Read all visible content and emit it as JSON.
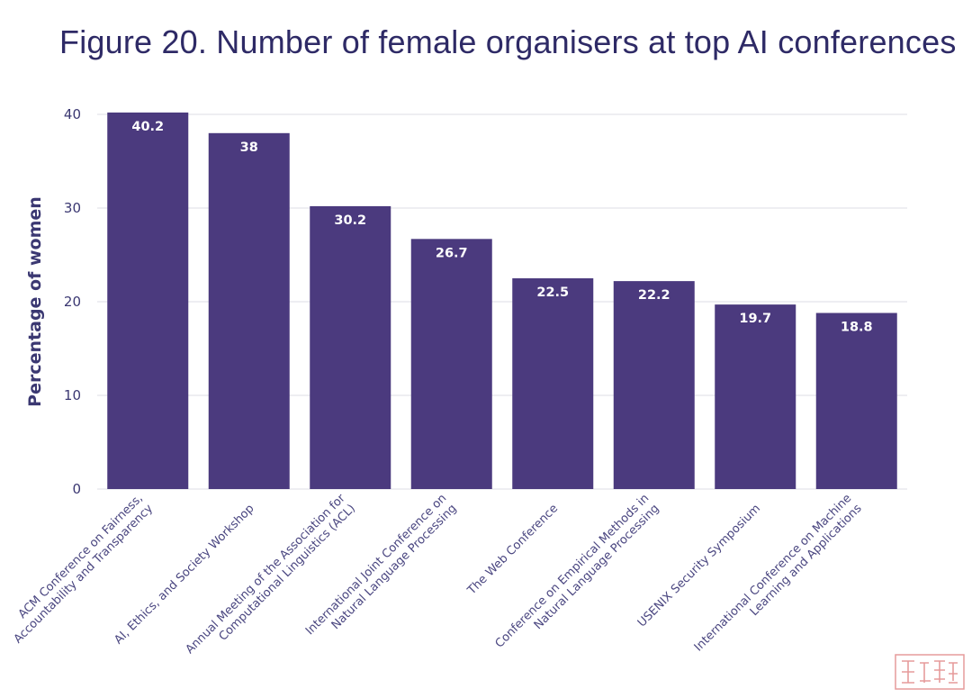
{
  "title": "Figure 20. Number of female organisers at top AI conferences",
  "colors": {
    "bar": "#4b3a7e",
    "text": "#3b3872",
    "title": "#2e2a66",
    "grid": "#e9e9ee"
  },
  "chart_data": {
    "type": "bar",
    "title": "Figure 20. Number of female organisers at top AI conferences",
    "xlabel": "",
    "ylabel": "Percentage of women",
    "ylim": [
      0,
      40
    ],
    "yticks": [
      0,
      10,
      20,
      30,
      40
    ],
    "grid": true,
    "categories": [
      [
        "ACM Conference on Fairness,",
        "Accountability and Transparency"
      ],
      [
        "AI, Ethics, and Society Workshop"
      ],
      [
        "Annual Meeting of the Association for",
        "Computational Linguistics (ACL)"
      ],
      [
        "International Joint Conference on",
        "Natural Language Processing"
      ],
      [
        "The Web Conference"
      ],
      [
        "Conference on Empirical Methods in",
        "Natural Language Processing"
      ],
      [
        "USENIX Security Symposium"
      ],
      [
        "International Conference on Machine",
        "Learning and Applications"
      ]
    ],
    "values": [
      40.2,
      38,
      30.2,
      26.7,
      22.5,
      22.2,
      19.7,
      18.8
    ],
    "data_labels": [
      "40.2",
      "38",
      "30.2",
      "26.7",
      "22.5",
      "22.2",
      "19.7",
      "18.8"
    ]
  }
}
